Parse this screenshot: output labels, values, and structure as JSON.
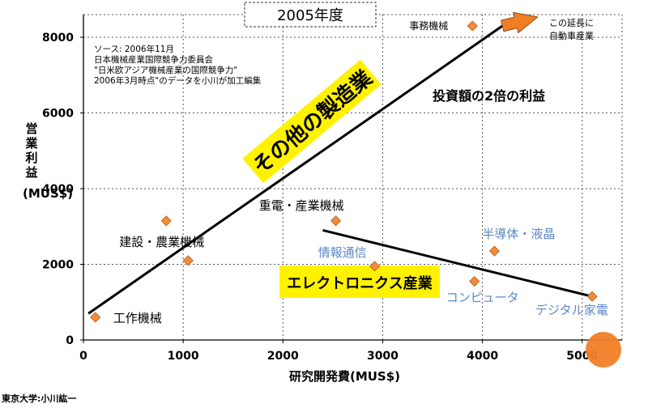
{
  "chart_data": {
    "type": "scatter",
    "title": "2005年度",
    "xlabel": "研究開発費(MUS$)",
    "ylabel_main": "営業利益",
    "ylabel_unit": "(MUS$)",
    "xlim": [
      0,
      5400
    ],
    "ylim": [
      0,
      8600
    ],
    "xticks": [
      0,
      1000,
      2000,
      3000,
      4000,
      5000
    ],
    "yticks": [
      0,
      2000,
      4000,
      6000,
      8000
    ],
    "grid": true,
    "points": [
      {
        "label": "工作機械",
        "x": 120,
        "y": 600,
        "group": "other"
      },
      {
        "label": "",
        "x": 830,
        "y": 3150,
        "group": "other"
      },
      {
        "label": "建設・農業機械",
        "x": 1050,
        "y": 2100,
        "group": "other"
      },
      {
        "label": "重電・産業機械",
        "x": 2530,
        "y": 3150,
        "group": "other"
      },
      {
        "label": "事務機械",
        "x": 3900,
        "y": 8300,
        "group": "other"
      },
      {
        "label": "情報通信",
        "x": 2920,
        "y": 1950,
        "group": "electronics"
      },
      {
        "label": "コンピュータ",
        "x": 3920,
        "y": 1550,
        "group": "electronics"
      },
      {
        "label": "半導体・液晶",
        "x": 4120,
        "y": 2350,
        "group": "electronics"
      },
      {
        "label": "デジタル家電",
        "x": 5100,
        "y": 1150,
        "group": "electronics"
      }
    ],
    "trend_lines": [
      {
        "name": "その他の製造業",
        "x": [
          50,
          4200
        ],
        "y": [
          700,
          8300
        ]
      },
      {
        "name": "エレクトロニクス産業",
        "x": [
          2400,
          5100
        ],
        "y": [
          2900,
          1150
        ]
      }
    ],
    "annotations": {
      "profit_note": "投資額の2倍の利益",
      "extension_note_line1": "この延長に",
      "extension_note_line2": "自動車産業",
      "other_band": "その他の製造業",
      "electronics_band": "エレクトロニクス産業"
    },
    "source": [
      "ソース: 2006年11月",
      "日本機械産業国際競争力委員会",
      "\"日米欧アジア機械産業の国際競争力\"",
      "2006年3月時点\"のデータを小川が加工編集"
    ],
    "colors": {
      "marker": "#f08c3c",
      "electronics_text": "#5b87c5",
      "highlight_band": "#fff200",
      "arrow": "#f07e26",
      "grid": "#555555"
    }
  },
  "credit": "東京大学:小川紘一"
}
